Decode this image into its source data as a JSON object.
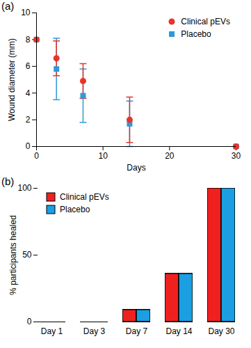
{
  "chart_data": [
    {
      "type": "scatter",
      "title": "(a)",
      "x_label": "Days",
      "y_label": "Wound diameter (mm)",
      "x": [
        0,
        3,
        7,
        14,
        30
      ],
      "series": [
        {
          "name": "Clinical pEVs",
          "color": "#e8342b",
          "marker": "circle",
          "values": [
            8,
            6.6,
            4.9,
            2.0,
            0
          ],
          "errors": [
            0,
            1.3,
            1.3,
            1.7,
            0
          ]
        },
        {
          "name": "Placebo",
          "color": "#2d9ad8",
          "marker": "square",
          "values": [
            8,
            5.8,
            3.8,
            1.7,
            0
          ],
          "errors": [
            0,
            2.3,
            2.0,
            1.7,
            0
          ]
        }
      ],
      "xlim": [
        0,
        30
      ],
      "xticks": [
        0,
        10,
        20,
        30
      ],
      "ylim": [
        0,
        10
      ],
      "yticks": [
        0,
        2,
        4,
        6,
        8,
        10
      ],
      "legend": "upper right"
    },
    {
      "type": "bar",
      "title": "(b)",
      "y_label": "% participants healed",
      "categories": [
        "Day 1",
        "Day 3",
        "Day 7",
        "Day 14",
        "Day 30"
      ],
      "series": [
        {
          "name": "Clinical pEVs",
          "color": "#f0201f",
          "values": [
            0,
            0,
            9,
            36,
            100
          ]
        },
        {
          "name": "Placebo",
          "color": "#1b9ee2",
          "values": [
            0,
            0,
            9,
            36,
            100
          ]
        }
      ],
      "ylim": [
        0,
        100
      ],
      "yticks": [
        0,
        50,
        100
      ],
      "legend": "upper left"
    }
  ]
}
